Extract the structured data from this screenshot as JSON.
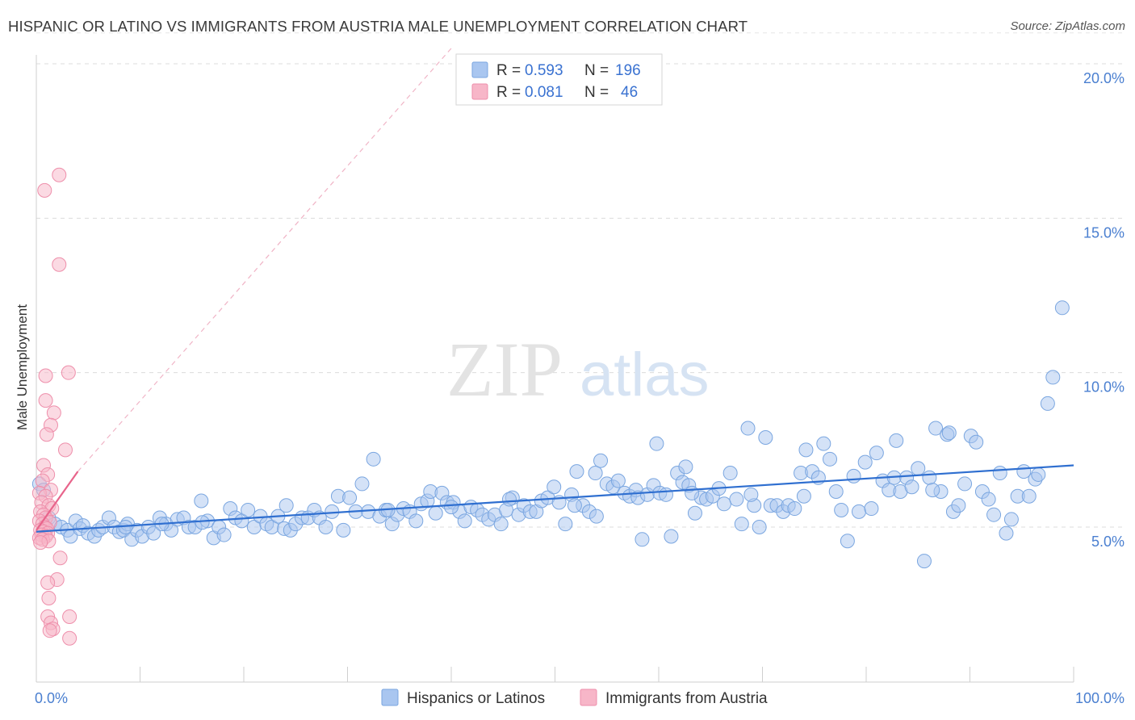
{
  "title": "HISPANIC OR LATINO VS IMMIGRANTS FROM AUSTRIA MALE UNEMPLOYMENT CORRELATION CHART",
  "source": "Source: ZipAtlas.com",
  "watermark": {
    "zip": "ZIP",
    "atlas": "atlas"
  },
  "legend_top": {
    "rows": [
      {
        "r_label": "R =",
        "r_value": "0.593",
        "n_label": "N =",
        "n_value": "196",
        "color": "#a9c6f0"
      },
      {
        "r_label": "R =",
        "r_value": "0.081",
        "n_label": "N =",
        "n_value": "46",
        "color": "#f7b6c8"
      }
    ]
  },
  "chart_data": {
    "type": "scatter",
    "xlabel": "",
    "ylabel": "Male Unemployment",
    "xlim": [
      0,
      100
    ],
    "ylim": [
      0.5,
      21
    ],
    "x_tick_labels": [
      {
        "value": 0,
        "label": "0.0%"
      },
      {
        "value": 100,
        "label": "100.0%"
      }
    ],
    "y_ticks": [
      {
        "value": 5,
        "label": "5.0%"
      },
      {
        "value": 10,
        "label": "10.0%"
      },
      {
        "value": 15,
        "label": "15.0%"
      },
      {
        "value": 20,
        "label": "20.0%"
      }
    ],
    "grid": "horizontal dashed",
    "legend_placement": "bottom-center",
    "series": [
      {
        "name": "Hispanics or Latinos",
        "color": "#a9c6f0",
        "stroke": "#7aa6e0",
        "trend": {
          "x": [
            0,
            100
          ],
          "y": [
            4.85,
            7.0
          ],
          "color": "#2f6fd0"
        },
        "points": [
          [
            0.3,
            6.4
          ],
          [
            0.7,
            6.2
          ],
          [
            1.2,
            5.3
          ],
          [
            1.8,
            5.1
          ],
          [
            2.4,
            5.0
          ],
          [
            3.0,
            4.9
          ],
          [
            3.3,
            4.7
          ],
          [
            3.8,
            5.2
          ],
          [
            4.2,
            4.95
          ],
          [
            4.5,
            5.05
          ],
          [
            5.0,
            4.8
          ],
          [
            5.6,
            4.7
          ],
          [
            6.0,
            4.9
          ],
          [
            6.4,
            5.0
          ],
          [
            7.0,
            5.3
          ],
          [
            7.5,
            5.0
          ],
          [
            8.0,
            4.85
          ],
          [
            8.4,
            4.9
          ],
          [
            8.8,
            5.1
          ],
          [
            9.2,
            4.6
          ],
          [
            9.7,
            4.9
          ],
          [
            10.2,
            4.7
          ],
          [
            10.8,
            5.0
          ],
          [
            11.3,
            4.8
          ],
          [
            11.9,
            5.3
          ],
          [
            12.5,
            5.1
          ],
          [
            13.0,
            4.9
          ],
          [
            13.6,
            5.25
          ],
          [
            14.2,
            5.3
          ],
          [
            14.7,
            5.0
          ],
          [
            15.3,
            5.0
          ],
          [
            15.9,
            5.85
          ],
          [
            16.5,
            5.2
          ],
          [
            17.1,
            4.65
          ],
          [
            17.6,
            5.0
          ],
          [
            18.1,
            4.75
          ],
          [
            18.7,
            5.6
          ],
          [
            19.2,
            5.3
          ],
          [
            19.8,
            5.2
          ],
          [
            20.4,
            5.55
          ],
          [
            21.0,
            5.0
          ],
          [
            21.6,
            5.35
          ],
          [
            22.2,
            5.1
          ],
          [
            22.7,
            5.0
          ],
          [
            23.3,
            5.35
          ],
          [
            23.9,
            4.95
          ],
          [
            24.5,
            4.9
          ],
          [
            25.0,
            5.1
          ],
          [
            25.6,
            5.3
          ],
          [
            26.2,
            5.3
          ],
          [
            26.8,
            5.55
          ],
          [
            27.3,
            5.3
          ],
          [
            27.9,
            5.0
          ],
          [
            28.5,
            5.5
          ],
          [
            29.1,
            6.0
          ],
          [
            29.6,
            4.9
          ],
          [
            30.2,
            5.95
          ],
          [
            30.8,
            5.5
          ],
          [
            31.4,
            6.4
          ],
          [
            32.0,
            5.5
          ],
          [
            32.5,
            7.2
          ],
          [
            33.1,
            5.35
          ],
          [
            33.7,
            5.55
          ],
          [
            34.3,
            5.1
          ],
          [
            34.8,
            5.4
          ],
          [
            35.4,
            5.6
          ],
          [
            36.0,
            5.5
          ],
          [
            36.6,
            5.2
          ],
          [
            37.1,
            5.75
          ],
          [
            37.7,
            5.85
          ],
          [
            38.0,
            6.15
          ],
          [
            38.5,
            5.45
          ],
          [
            39.1,
            6.1
          ],
          [
            39.6,
            5.8
          ],
          [
            40.2,
            5.8
          ],
          [
            40.8,
            5.5
          ],
          [
            41.3,
            5.2
          ],
          [
            41.9,
            5.65
          ],
          [
            42.5,
            5.55
          ],
          [
            43.0,
            5.4
          ],
          [
            43.6,
            5.25
          ],
          [
            44.2,
            5.4
          ],
          [
            44.8,
            5.1
          ],
          [
            45.3,
            5.55
          ],
          [
            45.9,
            5.95
          ],
          [
            46.5,
            5.4
          ],
          [
            47.0,
            5.7
          ],
          [
            47.6,
            5.5
          ],
          [
            48.2,
            5.5
          ],
          [
            48.7,
            5.85
          ],
          [
            49.3,
            5.95
          ],
          [
            49.9,
            6.3
          ],
          [
            50.4,
            5.8
          ],
          [
            51.0,
            5.1
          ],
          [
            51.6,
            6.05
          ],
          [
            52.1,
            6.8
          ],
          [
            52.7,
            5.7
          ],
          [
            53.3,
            5.5
          ],
          [
            53.9,
            6.75
          ],
          [
            54.4,
            7.15
          ],
          [
            55.0,
            6.4
          ],
          [
            55.6,
            6.3
          ],
          [
            56.1,
            6.5
          ],
          [
            56.7,
            6.1
          ],
          [
            57.2,
            6.0
          ],
          [
            57.8,
            6.2
          ],
          [
            58.0,
            5.95
          ],
          [
            58.4,
            4.6
          ],
          [
            58.9,
            6.05
          ],
          [
            59.5,
            6.35
          ],
          [
            59.8,
            7.7
          ],
          [
            60.1,
            6.1
          ],
          [
            60.7,
            6.05
          ],
          [
            61.2,
            4.7
          ],
          [
            61.8,
            6.75
          ],
          [
            62.3,
            6.45
          ],
          [
            62.6,
            6.95
          ],
          [
            62.9,
            6.35
          ],
          [
            63.5,
            5.45
          ],
          [
            64.1,
            5.95
          ],
          [
            64.6,
            5.9
          ],
          [
            65.2,
            6.0
          ],
          [
            65.8,
            6.25
          ],
          [
            66.3,
            5.75
          ],
          [
            66.9,
            6.75
          ],
          [
            67.5,
            5.9
          ],
          [
            68.0,
            5.1
          ],
          [
            68.6,
            8.2
          ],
          [
            69.2,
            5.7
          ],
          [
            69.7,
            5.0
          ],
          [
            70.3,
            7.9
          ],
          [
            70.8,
            5.7
          ],
          [
            71.4,
            5.7
          ],
          [
            72.0,
            5.5
          ],
          [
            72.5,
            5.7
          ],
          [
            73.1,
            5.6
          ],
          [
            73.7,
            6.75
          ],
          [
            74.2,
            7.5
          ],
          [
            74.8,
            6.8
          ],
          [
            75.4,
            6.6
          ],
          [
            75.9,
            7.7
          ],
          [
            76.5,
            7.2
          ],
          [
            77.1,
            6.15
          ],
          [
            77.6,
            5.55
          ],
          [
            78.2,
            4.55
          ],
          [
            78.8,
            6.65
          ],
          [
            79.3,
            5.5
          ],
          [
            79.9,
            7.1
          ],
          [
            80.5,
            5.6
          ],
          [
            81.0,
            7.4
          ],
          [
            81.6,
            6.5
          ],
          [
            82.2,
            6.2
          ],
          [
            82.7,
            6.6
          ],
          [
            83.3,
            6.15
          ],
          [
            83.9,
            6.6
          ],
          [
            84.4,
            6.3
          ],
          [
            85.0,
            6.9
          ],
          [
            85.6,
            3.9
          ],
          [
            86.1,
            6.6
          ],
          [
            86.7,
            8.2
          ],
          [
            87.2,
            6.15
          ],
          [
            87.8,
            8.0
          ],
          [
            88.4,
            5.5
          ],
          [
            88.9,
            5.7
          ],
          [
            89.5,
            6.4
          ],
          [
            90.1,
            7.95
          ],
          [
            90.6,
            7.75
          ],
          [
            91.2,
            6.15
          ],
          [
            91.8,
            5.9
          ],
          [
            92.3,
            5.4
          ],
          [
            92.9,
            6.75
          ],
          [
            93.5,
            4.8
          ],
          [
            94.0,
            5.25
          ],
          [
            94.6,
            6.0
          ],
          [
            95.2,
            6.8
          ],
          [
            95.7,
            6.0
          ],
          [
            96.3,
            6.55
          ],
          [
            97.5,
            9.0
          ],
          [
            98.0,
            9.85
          ],
          [
            98.9,
            12.1
          ],
          [
            68.9,
            6.05
          ],
          [
            45.6,
            5.9
          ],
          [
            33.9,
            5.55
          ],
          [
            24.1,
            5.7
          ],
          [
            16.0,
            5.15
          ],
          [
            8.6,
            5.0
          ],
          [
            12.1,
            5.1
          ],
          [
            40.0,
            5.65
          ],
          [
            54.0,
            5.35
          ],
          [
            74.0,
            6.0
          ],
          [
            82.9,
            7.8
          ],
          [
            88.0,
            8.05
          ],
          [
            96.6,
            6.7
          ],
          [
            51.9,
            5.7
          ],
          [
            63.2,
            6.1
          ],
          [
            86.4,
            6.2
          ]
        ]
      },
      {
        "name": "Immigrants from Austria",
        "color": "#f7b6c8",
        "stroke": "#ee8fab",
        "trend": {
          "x": [
            0,
            4
          ],
          "y": [
            4.9,
            6.8
          ],
          "color": "#e8648b",
          "extended_x": [
            4,
            40
          ],
          "extended_y": [
            6.8,
            20.5
          ]
        },
        "points": [
          [
            0.8,
            15.9
          ],
          [
            2.2,
            16.4
          ],
          [
            2.2,
            13.5
          ],
          [
            3.1,
            10.0
          ],
          [
            0.9,
            9.9
          ],
          [
            0.9,
            9.1
          ],
          [
            1.7,
            8.7
          ],
          [
            1.4,
            8.3
          ],
          [
            1.0,
            8.0
          ],
          [
            2.8,
            7.5
          ],
          [
            0.7,
            7.0
          ],
          [
            1.1,
            6.7
          ],
          [
            0.6,
            6.5
          ],
          [
            1.4,
            6.2
          ],
          [
            0.3,
            6.1
          ],
          [
            0.9,
            6.0
          ],
          [
            0.5,
            5.8
          ],
          [
            1.2,
            5.7
          ],
          [
            1.5,
            5.6
          ],
          [
            0.4,
            5.5
          ],
          [
            0.7,
            5.4
          ],
          [
            0.9,
            5.3
          ],
          [
            0.3,
            5.2
          ],
          [
            1.3,
            5.15
          ],
          [
            0.6,
            5.1
          ],
          [
            0.8,
            5.0
          ],
          [
            1.0,
            4.95
          ],
          [
            0.4,
            4.9
          ],
          [
            0.7,
            4.85
          ],
          [
            1.1,
            4.8
          ],
          [
            0.5,
            4.75
          ],
          [
            0.9,
            4.7
          ],
          [
            0.3,
            4.65
          ],
          [
            0.6,
            4.6
          ],
          [
            1.2,
            4.55
          ],
          [
            0.4,
            4.5
          ],
          [
            2.3,
            4.0
          ],
          [
            2.0,
            3.3
          ],
          [
            1.1,
            3.2
          ],
          [
            1.2,
            2.7
          ],
          [
            3.2,
            2.1
          ],
          [
            1.1,
            2.1
          ],
          [
            1.4,
            1.9
          ],
          [
            1.6,
            1.7
          ],
          [
            1.3,
            1.65
          ],
          [
            3.2,
            1.4
          ]
        ]
      }
    ]
  }
}
